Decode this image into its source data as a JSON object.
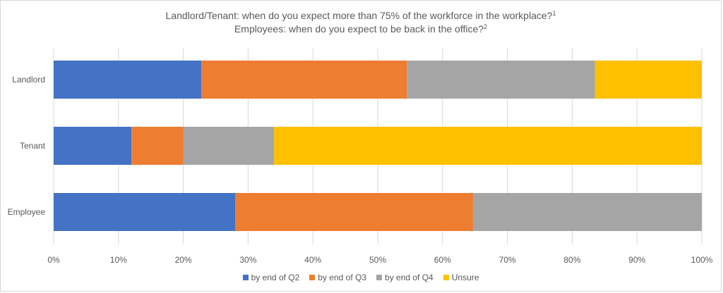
{
  "chart_data": {
    "type": "bar",
    "orientation": "horizontal",
    "stacked": true,
    "title_line1": "Landlord/Tenant: when do you expect more than 75% of the workforce in the workplace?",
    "title_line1_sup": "1",
    "title_line2": "Employees: when do you expect to be back in the office?",
    "title_line2_sup": "2",
    "categories": [
      "Landlord",
      "Tenant",
      "Employee"
    ],
    "series": [
      {
        "name": "by end of Q2",
        "color": "#4472c4",
        "values": [
          22.8,
          12.0,
          28.0
        ]
      },
      {
        "name": "by end of Q3",
        "color": "#ed7d31",
        "values": [
          31.7,
          8.0,
          36.7
        ]
      },
      {
        "name": "by end of Q4",
        "color": "#a5a5a5",
        "values": [
          29.0,
          14.0,
          35.3
        ]
      },
      {
        "name": "Unsure",
        "color": "#ffc000",
        "values": [
          16.5,
          66.0,
          0.0
        ]
      }
    ],
    "xlim": [
      0,
      100
    ],
    "xticks": [
      "0%",
      "10%",
      "20%",
      "30%",
      "40%",
      "50%",
      "60%",
      "70%",
      "80%",
      "90%",
      "100%"
    ],
    "grid": true,
    "legend_position": "bottom"
  }
}
